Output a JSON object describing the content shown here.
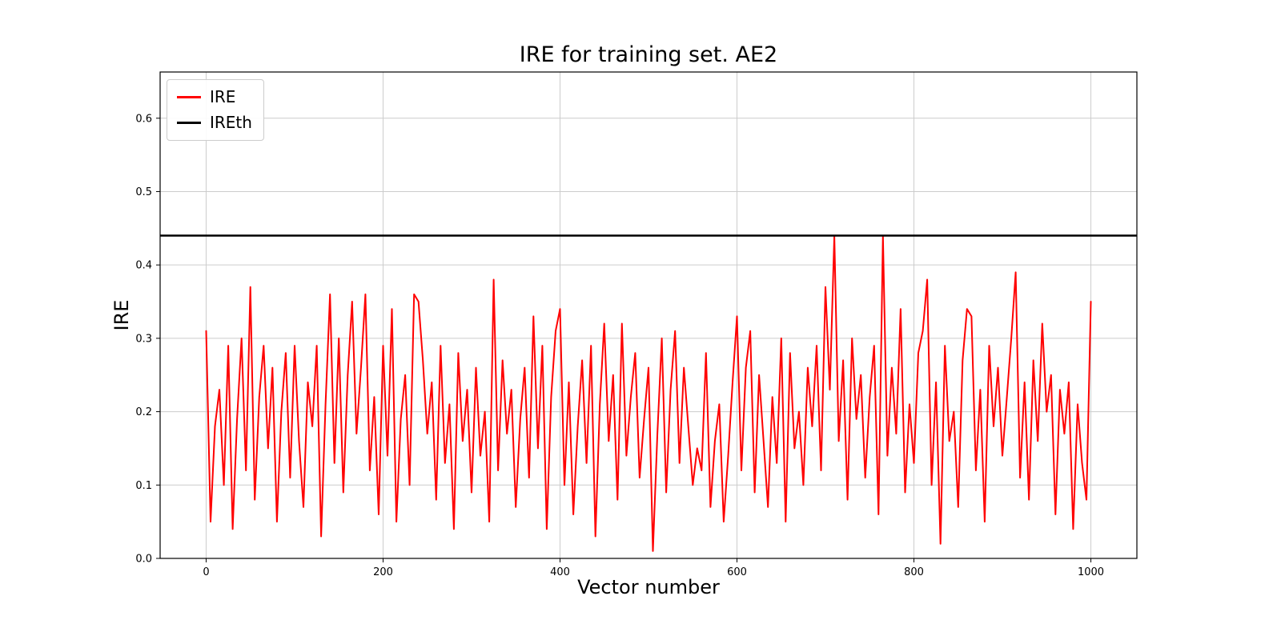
{
  "chart_data": {
    "type": "line",
    "title": "IRE for training set. AE2",
    "xlabel": "Vector number",
    "ylabel": "IRE",
    "xlim": [
      -52,
      1052
    ],
    "ylim": [
      0,
      0.663
    ],
    "xticks": [
      0,
      200,
      400,
      600,
      800,
      1000
    ],
    "yticks": [
      0.0,
      0.1,
      0.2,
      0.3,
      0.4,
      0.5,
      0.6
    ],
    "grid": true,
    "grid_color": "#cccccc",
    "legend": {
      "position": "upper-left",
      "entries": [
        {
          "label": "IRE",
          "color": "#ff0000"
        },
        {
          "label": "IREth",
          "color": "#000000"
        }
      ]
    },
    "threshold": {
      "name": "IREth",
      "value": 0.44,
      "color": "#000000"
    },
    "series": [
      {
        "name": "IRE",
        "color": "#ff0000",
        "x_start": 0,
        "x_step": 5,
        "values": [
          0.31,
          0.05,
          0.18,
          0.23,
          0.1,
          0.29,
          0.04,
          0.19,
          0.3,
          0.12,
          0.37,
          0.08,
          0.22,
          0.29,
          0.15,
          0.26,
          0.05,
          0.2,
          0.28,
          0.11,
          0.29,
          0.16,
          0.07,
          0.24,
          0.18,
          0.29,
          0.03,
          0.21,
          0.36,
          0.13,
          0.3,
          0.09,
          0.25,
          0.35,
          0.17,
          0.26,
          0.36,
          0.12,
          0.22,
          0.06,
          0.29,
          0.14,
          0.34,
          0.05,
          0.19,
          0.25,
          0.1,
          0.36,
          0.35,
          0.27,
          0.17,
          0.24,
          0.08,
          0.29,
          0.13,
          0.21,
          0.04,
          0.28,
          0.16,
          0.23,
          0.09,
          0.26,
          0.14,
          0.2,
          0.05,
          0.38,
          0.12,
          0.27,
          0.17,
          0.23,
          0.07,
          0.19,
          0.26,
          0.11,
          0.33,
          0.15,
          0.29,
          0.04,
          0.22,
          0.31,
          0.34,
          0.1,
          0.24,
          0.06,
          0.18,
          0.27,
          0.13,
          0.29,
          0.03,
          0.21,
          0.32,
          0.16,
          0.25,
          0.08,
          0.32,
          0.14,
          0.22,
          0.28,
          0.11,
          0.19,
          0.26,
          0.01,
          0.17,
          0.3,
          0.09,
          0.23,
          0.31,
          0.13,
          0.26,
          0.18,
          0.1,
          0.15,
          0.12,
          0.28,
          0.07,
          0.16,
          0.21,
          0.05,
          0.14,
          0.24,
          0.33,
          0.12,
          0.26,
          0.31,
          0.09,
          0.25,
          0.16,
          0.07,
          0.22,
          0.13,
          0.3,
          0.05,
          0.28,
          0.15,
          0.2,
          0.1,
          0.26,
          0.18,
          0.29,
          0.12,
          0.37,
          0.23,
          0.44,
          0.16,
          0.27,
          0.08,
          0.3,
          0.19,
          0.25,
          0.11,
          0.22,
          0.29,
          0.06,
          0.44,
          0.14,
          0.26,
          0.17,
          0.34,
          0.09,
          0.21,
          0.13,
          0.28,
          0.31,
          0.38,
          0.1,
          0.24,
          0.02,
          0.29,
          0.16,
          0.2,
          0.07,
          0.27,
          0.34,
          0.33,
          0.12,
          0.23,
          0.05,
          0.29,
          0.18,
          0.26,
          0.14,
          0.22,
          0.3,
          0.39,
          0.11,
          0.24,
          0.08,
          0.27,
          0.16,
          0.32,
          0.2,
          0.25,
          0.06,
          0.23,
          0.17,
          0.24,
          0.04,
          0.21,
          0.13,
          0.08,
          0.35
        ]
      }
    ]
  }
}
